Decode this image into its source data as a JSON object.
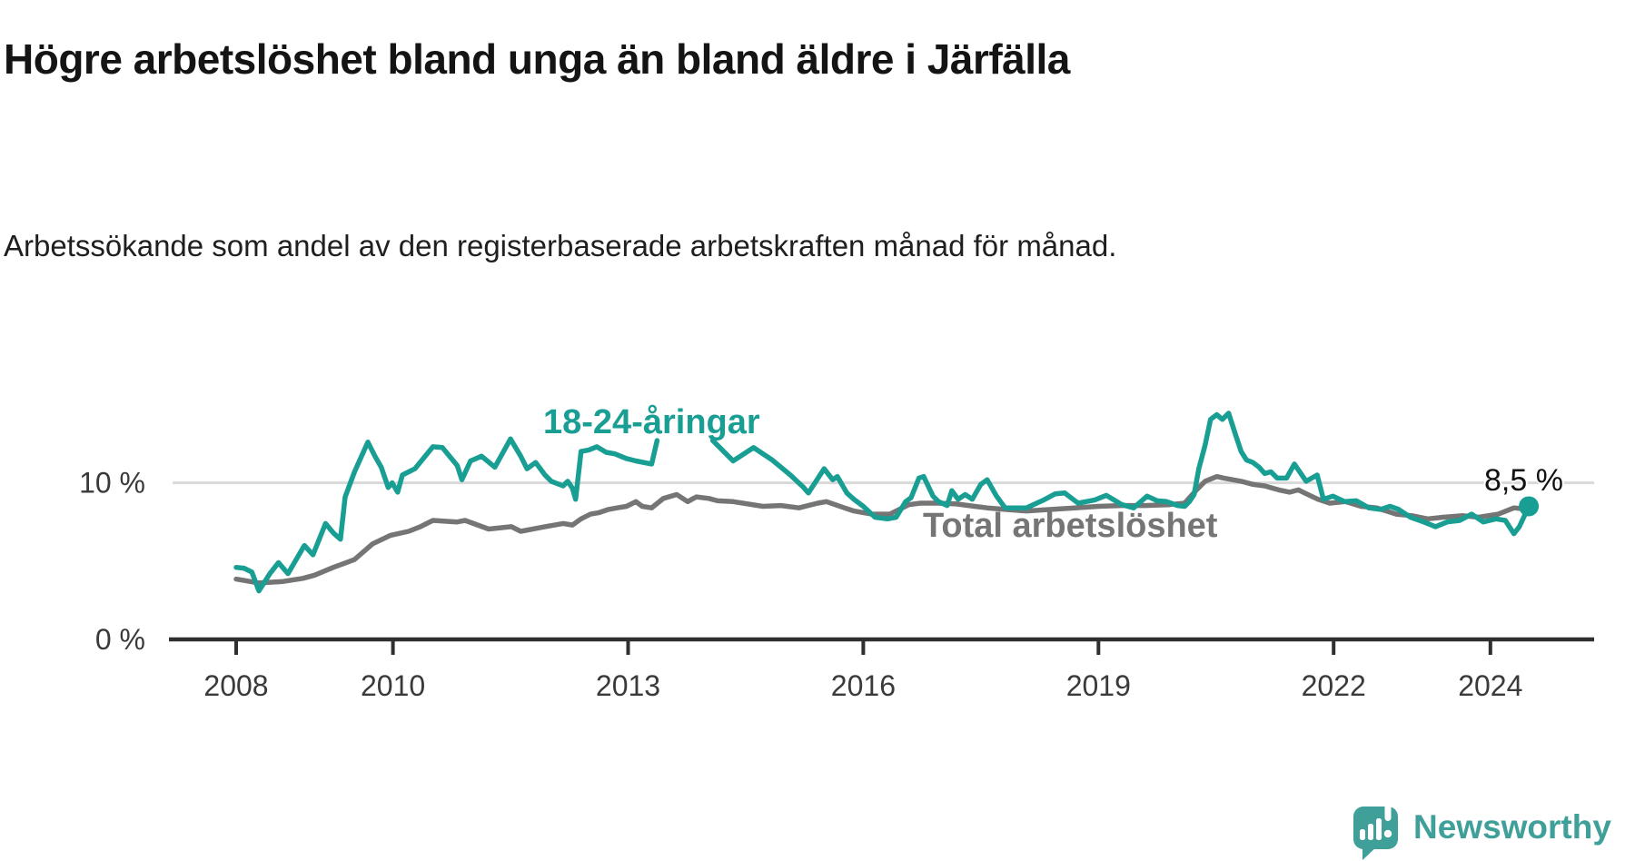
{
  "title": "Högre arbetslöshet bland unga än bland äldre i Järfälla",
  "subtitle": "Arbetssökande som andel av den registerbaserade arbetskraften månad för månad.",
  "branding": {
    "name": "Newsworthy",
    "color": "#3f9f99"
  },
  "chart_data": {
    "type": "line",
    "title": "Högre arbetslöshet bland unga än bland äldre i Järfälla",
    "subtitle": "Arbetssökande som andel av den registerbaserade arbetskraften månad för månad.",
    "xlabel": "",
    "ylabel": "",
    "x_ticks": [
      2008,
      2010,
      2013,
      2016,
      2019,
      2022,
      2024
    ],
    "x_tick_labels": [
      "2008",
      "2010",
      "2013",
      "2016",
      "2019",
      "2022",
      "2024"
    ],
    "y_ticks": [
      {
        "value": 0,
        "label": "0 %"
      },
      {
        "value": 10,
        "label": "10 %"
      }
    ],
    "ylim": [
      0,
      15
    ],
    "xlim": [
      2008,
      2024.9
    ],
    "grid": "horizontal-10-only",
    "grid_color": "#d9d9d9",
    "axis_color": "#2f2f2f",
    "tick_label_color": "#3a3a3a",
    "legend_position": "inline-annotations",
    "annotations": [
      {
        "text": "18-24-åringar",
        "color": "#199e94"
      },
      {
        "text": "Total arbetslöshet",
        "color": "#757575"
      },
      {
        "text": "8,5 %",
        "color": "#121212"
      }
    ],
    "series": [
      {
        "name": "18-24-åringar",
        "color": "#199e94",
        "end_label": "8,5 %",
        "end_value": 8.5,
        "end_dot": true,
        "segments": [
          [
            [
              2008.0,
              4.6
            ],
            [
              2008.1,
              4.55
            ],
            [
              2008.2,
              4.3
            ],
            [
              2008.29,
              3.1
            ],
            [
              2008.43,
              4.2
            ],
            [
              2008.54,
              4.9
            ],
            [
              2008.66,
              4.2
            ],
            [
              2008.87,
              6.0
            ],
            [
              2008.98,
              5.4
            ],
            [
              2009.14,
              7.4
            ],
            [
              2009.24,
              6.8
            ],
            [
              2009.33,
              6.4
            ],
            [
              2009.39,
              9.1
            ],
            [
              2009.51,
              10.7
            ],
            [
              2009.68,
              12.6
            ],
            [
              2009.77,
              11.7
            ],
            [
              2009.85,
              11.0
            ],
            [
              2009.94,
              9.7
            ],
            [
              2009.99,
              10.0
            ],
            [
              2010.06,
              9.4
            ],
            [
              2010.12,
              10.5
            ],
            [
              2010.28,
              10.9
            ],
            [
              2010.51,
              12.3
            ],
            [
              2010.63,
              12.25
            ],
            [
              2010.82,
              11.1
            ],
            [
              2010.88,
              10.2
            ],
            [
              2010.99,
              11.4
            ],
            [
              2011.13,
              11.7
            ],
            [
              2011.3,
              11.0
            ],
            [
              2011.5,
              12.8
            ],
            [
              2011.63,
              11.7
            ],
            [
              2011.71,
              10.9
            ],
            [
              2011.82,
              11.3
            ],
            [
              2011.94,
              10.5
            ],
            [
              2012.02,
              10.1
            ],
            [
              2012.17,
              9.8
            ],
            [
              2012.23,
              10.1
            ],
            [
              2012.29,
              9.65
            ],
            [
              2012.33,
              8.95
            ],
            [
              2012.4,
              12.0
            ],
            [
              2012.5,
              12.1
            ],
            [
              2012.6,
              12.3
            ],
            [
              2012.72,
              11.95
            ],
            [
              2012.83,
              11.85
            ],
            [
              2012.98,
              11.55
            ],
            [
              2013.1,
              11.4
            ],
            [
              2013.3,
              11.2
            ],
            [
              2013.37,
              12.7
            ]
          ],
          [
            [
              2014.08,
              12.7
            ],
            [
              2014.34,
              11.4
            ],
            [
              2014.6,
              12.25
            ],
            [
              2014.84,
              11.45
            ],
            [
              2015.07,
              10.5
            ],
            [
              2015.24,
              9.7
            ],
            [
              2015.3,
              9.35
            ],
            [
              2015.5,
              10.9
            ],
            [
              2015.61,
              10.2
            ],
            [
              2015.67,
              10.4
            ],
            [
              2015.79,
              9.35
            ],
            [
              2015.88,
              8.95
            ],
            [
              2016.0,
              8.5
            ],
            [
              2016.15,
              7.8
            ],
            [
              2016.31,
              7.7
            ],
            [
              2016.42,
              7.8
            ],
            [
              2016.54,
              8.8
            ],
            [
              2016.61,
              9.05
            ],
            [
              2016.71,
              10.3
            ],
            [
              2016.77,
              10.4
            ],
            [
              2016.89,
              9.15
            ],
            [
              2016.96,
              8.8
            ],
            [
              2017.07,
              8.55
            ],
            [
              2017.13,
              9.5
            ],
            [
              2017.21,
              8.95
            ],
            [
              2017.3,
              9.25
            ],
            [
              2017.39,
              8.95
            ],
            [
              2017.5,
              9.9
            ],
            [
              2017.58,
              10.2
            ],
            [
              2017.7,
              9.15
            ],
            [
              2017.81,
              8.4
            ],
            [
              2018.08,
              8.4
            ],
            [
              2018.3,
              8.9
            ],
            [
              2018.45,
              9.3
            ],
            [
              2018.57,
              9.35
            ],
            [
              2018.74,
              8.7
            ],
            [
              2018.95,
              8.9
            ],
            [
              2019.1,
              9.2
            ],
            [
              2019.3,
              8.6
            ],
            [
              2019.45,
              8.4
            ],
            [
              2019.62,
              9.15
            ],
            [
              2019.75,
              8.85
            ],
            [
              2019.87,
              8.8
            ],
            [
              2020.01,
              8.55
            ],
            [
              2020.1,
              8.5
            ],
            [
              2020.16,
              8.8
            ],
            [
              2020.22,
              9.25
            ],
            [
              2020.28,
              10.9
            ],
            [
              2020.36,
              12.4
            ],
            [
              2020.43,
              14.05
            ],
            [
              2020.51,
              14.35
            ],
            [
              2020.58,
              14.05
            ],
            [
              2020.66,
              14.45
            ],
            [
              2020.74,
              13.2
            ],
            [
              2020.82,
              12.0
            ],
            [
              2020.89,
              11.45
            ],
            [
              2020.97,
              11.3
            ],
            [
              2021.05,
              11.0
            ],
            [
              2021.12,
              10.6
            ],
            [
              2021.2,
              10.7
            ],
            [
              2021.28,
              10.3
            ],
            [
              2021.4,
              10.3
            ],
            [
              2021.5,
              11.2
            ],
            [
              2021.65,
              10.1
            ],
            [
              2021.79,
              10.5
            ],
            [
              2021.87,
              8.95
            ],
            [
              2021.99,
              9.15
            ],
            [
              2022.14,
              8.8
            ],
            [
              2022.29,
              8.85
            ],
            [
              2022.45,
              8.4
            ],
            [
              2022.6,
              8.3
            ],
            [
              2022.72,
              8.5
            ],
            [
              2022.83,
              8.3
            ],
            [
              2022.98,
              7.8
            ],
            [
              2023.15,
              7.5
            ],
            [
              2023.3,
              7.2
            ],
            [
              2023.45,
              7.5
            ],
            [
              2023.61,
              7.6
            ],
            [
              2023.76,
              8.0
            ],
            [
              2023.91,
              7.5
            ],
            [
              2024.07,
              7.7
            ],
            [
              2024.19,
              7.6
            ],
            [
              2024.3,
              6.75
            ],
            [
              2024.37,
              7.2
            ],
            [
              2024.49,
              8.5
            ]
          ]
        ]
      },
      {
        "name": "Total arbetslöshet",
        "color": "#757575",
        "end_dot": false,
        "segments": [
          [
            [
              2008.0,
              3.85
            ],
            [
              2008.29,
              3.6
            ],
            [
              2008.6,
              3.7
            ],
            [
              2008.85,
              3.9
            ],
            [
              2009.0,
              4.1
            ],
            [
              2009.24,
              4.6
            ],
            [
              2009.51,
              5.1
            ],
            [
              2009.74,
              6.1
            ],
            [
              2009.97,
              6.65
            ],
            [
              2010.2,
              6.9
            ],
            [
              2010.35,
              7.2
            ],
            [
              2010.51,
              7.6
            ],
            [
              2010.82,
              7.5
            ],
            [
              2010.92,
              7.6
            ],
            [
              2011.22,
              7.05
            ],
            [
              2011.51,
              7.2
            ],
            [
              2011.63,
              6.9
            ],
            [
              2011.94,
              7.2
            ],
            [
              2012.17,
              7.4
            ],
            [
              2012.29,
              7.3
            ],
            [
              2012.4,
              7.7
            ],
            [
              2012.52,
              8.0
            ],
            [
              2012.63,
              8.1
            ],
            [
              2012.75,
              8.3
            ],
            [
              2012.86,
              8.4
            ],
            [
              2012.98,
              8.5
            ],
            [
              2013.1,
              8.8
            ],
            [
              2013.18,
              8.5
            ],
            [
              2013.3,
              8.4
            ],
            [
              2013.45,
              9.0
            ],
            [
              2013.62,
              9.25
            ],
            [
              2013.76,
              8.8
            ],
            [
              2013.87,
              9.1
            ],
            [
              2014.03,
              9.0
            ],
            [
              2014.14,
              8.85
            ],
            [
              2014.34,
              8.8
            ],
            [
              2014.72,
              8.5
            ],
            [
              2014.95,
              8.55
            ],
            [
              2015.18,
              8.4
            ],
            [
              2015.42,
              8.7
            ],
            [
              2015.53,
              8.8
            ],
            [
              2015.76,
              8.4
            ],
            [
              2015.88,
              8.2
            ],
            [
              2016.0,
              8.1
            ],
            [
              2016.11,
              8.0
            ],
            [
              2016.34,
              8.0
            ],
            [
              2016.58,
              8.6
            ],
            [
              2016.73,
              8.7
            ],
            [
              2016.96,
              8.7
            ],
            [
              2017.19,
              8.65
            ],
            [
              2017.42,
              8.5
            ],
            [
              2017.58,
              8.4
            ],
            [
              2017.81,
              8.3
            ],
            [
              2018.08,
              8.2
            ],
            [
              2018.4,
              8.3
            ],
            [
              2018.7,
              8.4
            ],
            [
              2019.0,
              8.5
            ],
            [
              2019.3,
              8.55
            ],
            [
              2019.6,
              8.55
            ],
            [
              2019.9,
              8.6
            ],
            [
              2020.1,
              8.7
            ],
            [
              2020.25,
              9.55
            ],
            [
              2020.36,
              10.1
            ],
            [
              2020.51,
              10.4
            ],
            [
              2020.6,
              10.3
            ],
            [
              2020.82,
              10.1
            ],
            [
              2020.97,
              9.9
            ],
            [
              2021.12,
              9.8
            ],
            [
              2021.3,
              9.55
            ],
            [
              2021.44,
              9.4
            ],
            [
              2021.55,
              9.55
            ],
            [
              2021.63,
              9.35
            ],
            [
              2021.8,
              8.95
            ],
            [
              2021.95,
              8.7
            ],
            [
              2022.15,
              8.8
            ],
            [
              2022.35,
              8.5
            ],
            [
              2022.55,
              8.4
            ],
            [
              2022.8,
              8.0
            ],
            [
              2023.0,
              7.9
            ],
            [
              2023.2,
              7.7
            ],
            [
              2023.4,
              7.8
            ],
            [
              2023.65,
              7.9
            ],
            [
              2023.85,
              7.8
            ],
            [
              2024.1,
              8.0
            ],
            [
              2024.3,
              8.4
            ],
            [
              2024.49,
              8.3
            ]
          ]
        ]
      }
    ]
  }
}
